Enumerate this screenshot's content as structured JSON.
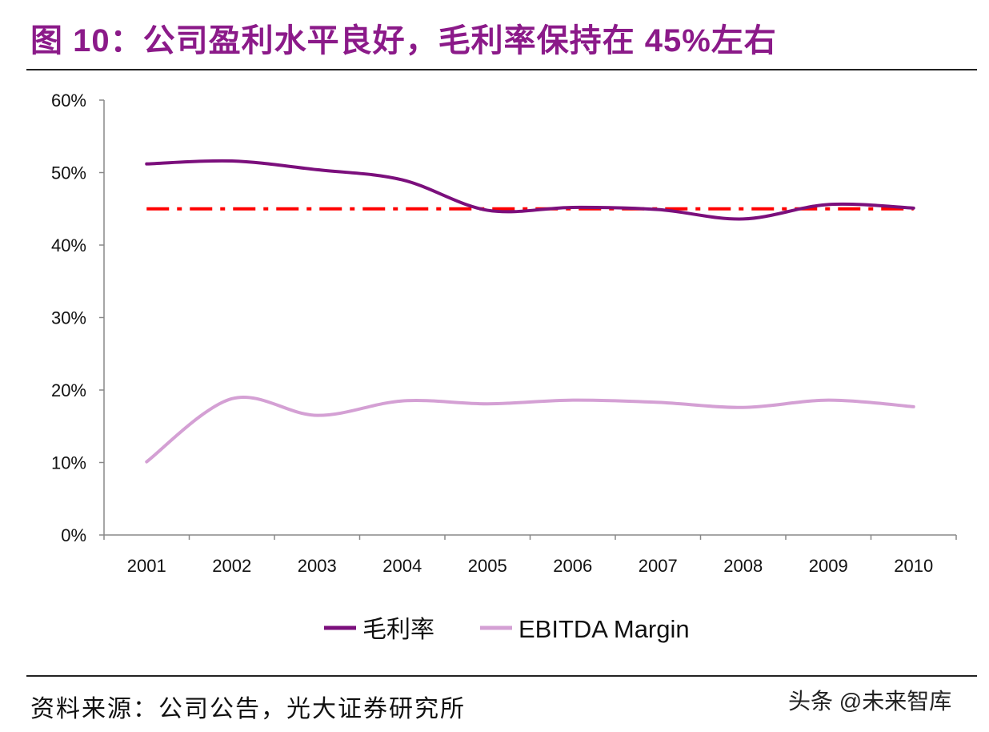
{
  "title": "图 10：公司盈利水平良好，毛利率保持在 45%左右",
  "source": "资料来源：公司公告，光大证券研究所",
  "watermark": "头条 @未来智库",
  "chart_data": {
    "type": "line",
    "categories": [
      "2001",
      "2002",
      "2003",
      "2004",
      "2005",
      "2006",
      "2007",
      "2008",
      "2009",
      "2010"
    ],
    "ylim": [
      0,
      60
    ],
    "yticks": [
      "0%",
      "10%",
      "20%",
      "30%",
      "40%",
      "50%",
      "60%"
    ],
    "series": [
      {
        "name": "毛利率",
        "color": "#7B0F7C",
        "values": [
          51.2,
          51.6,
          50.4,
          49.0,
          44.8,
          45.2,
          44.9,
          43.6,
          45.6,
          45.1
        ]
      },
      {
        "name": "EBITDA Margin",
        "color": "#D4A0D4",
        "values": [
          10.1,
          18.8,
          16.5,
          18.5,
          18.1,
          18.6,
          18.3,
          17.6,
          18.6,
          17.7
        ]
      }
    ],
    "reference_line": {
      "value": 45,
      "color": "#FF0000",
      "style": "dash-dot"
    },
    "legend_placement": "bottom",
    "grid": false
  }
}
